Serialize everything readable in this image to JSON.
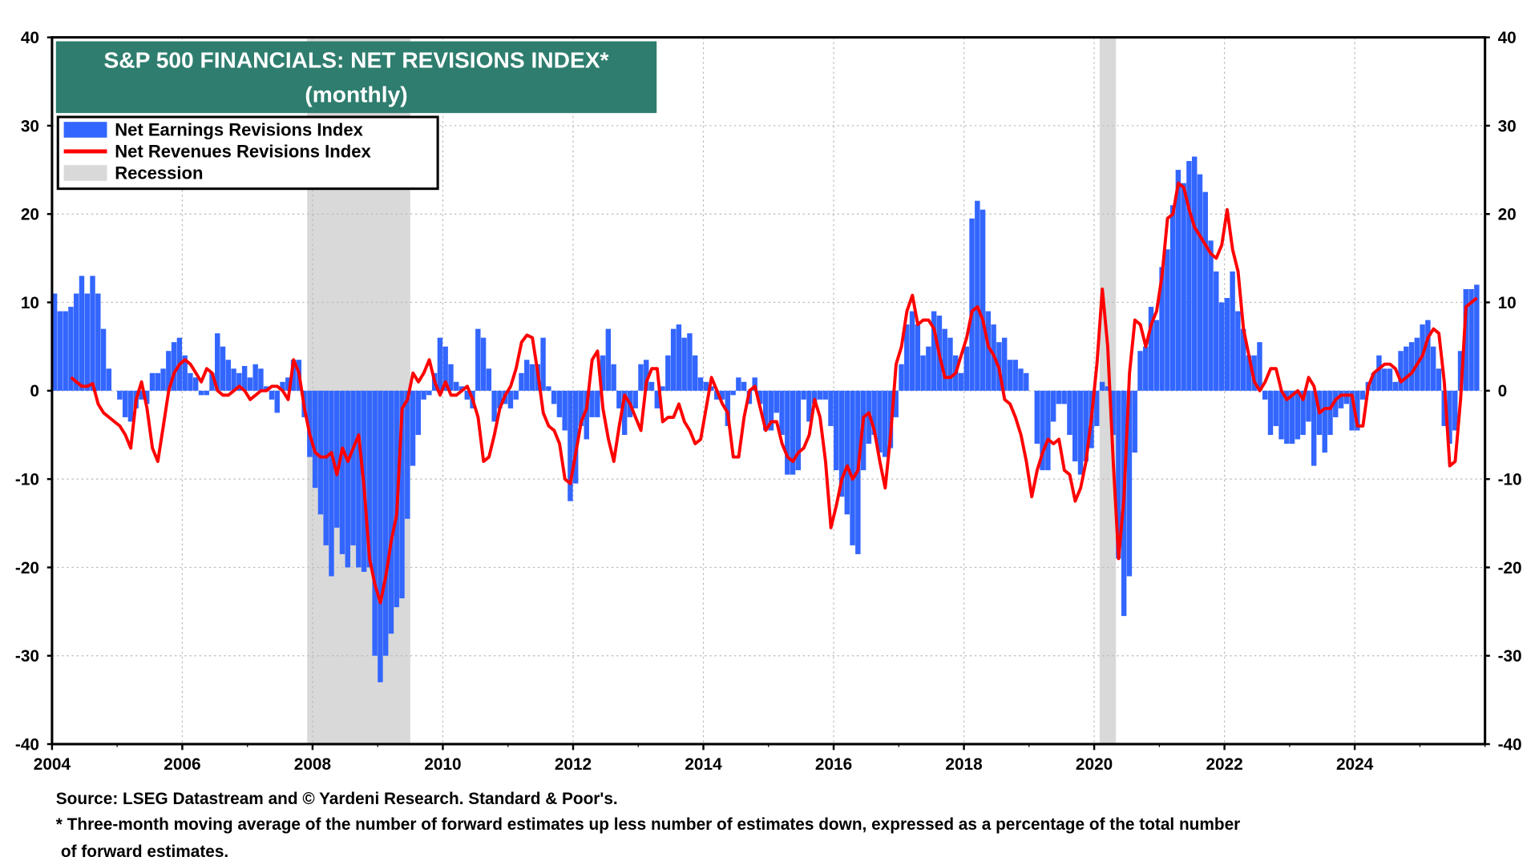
{
  "chart_data": {
    "type": "bar",
    "title": "S&P 500 FINANCIALS: NET REVISIONS INDEX*",
    "subtitle": "(monthly)",
    "xlabel": "",
    "ylabel": "",
    "ylim": [
      -40,
      40
    ],
    "xlim": [
      2004,
      2026
    ],
    "y_ticks": [
      "40",
      "30",
      "20",
      "10",
      "0",
      "-10",
      "-20",
      "-30",
      "-40"
    ],
    "x_ticks": [
      "2004",
      "2006",
      "2008",
      "2010",
      "2012",
      "2014",
      "2016",
      "2018",
      "2020",
      "2022",
      "2024"
    ],
    "grid": true,
    "legend_position": "top-left",
    "legend": [
      "Net Earnings Revisions Index",
      "Net Revenues Revisions Index",
      "Recession"
    ],
    "colors": {
      "earnings": "#3366ff",
      "revenues": "#ff0000",
      "recession": "#d9d9d9",
      "title_bg": "#2e7d6e"
    },
    "recessions": [
      {
        "start": "2007-12",
        "end": "2009-06"
      },
      {
        "start": "2020-02",
        "end": "2020-04"
      }
    ],
    "series": [
      {
        "name": "Net Earnings Revisions Index",
        "type": "bar",
        "start": "2004-01",
        "values": [
          11,
          9,
          9,
          9.5,
          11,
          13,
          11,
          13,
          11,
          7,
          2.5,
          0,
          -1,
          -3,
          -3.5,
          -2,
          -1,
          -1.5,
          2,
          2,
          2.5,
          4.5,
          5.5,
          6,
          4,
          2,
          1.5,
          -0.5,
          -0.5,
          2,
          6.5,
          5,
          3.5,
          2.5,
          2,
          2.8,
          1.5,
          3,
          2.5,
          0.5,
          -1,
          -2.5,
          1,
          1.5,
          3.5,
          3.5,
          -3,
          -7.5,
          -11,
          -14,
          -17.5,
          -21,
          -15.5,
          -18.5,
          -20,
          -17.5,
          -20,
          -20.5,
          -20,
          -30,
          -33,
          -30,
          -27.5,
          -24.5,
          -23.5,
          -14.5,
          -8.5,
          -5,
          -1,
          -0.5,
          2,
          6,
          5,
          3,
          1,
          0.5,
          -1,
          -2,
          7,
          6,
          2.5,
          -3.5,
          -2,
          -1.5,
          -2,
          -1,
          2,
          3.5,
          3,
          3,
          6,
          0.5,
          -1.5,
          -3,
          -4.5,
          -12.5,
          -10.5,
          -4,
          -5.5,
          -3,
          -3,
          4,
          7,
          3,
          -2,
          -5,
          -3,
          -2,
          3,
          3.5,
          1,
          -2,
          0.5,
          4,
          7,
          7.5,
          6,
          6.5,
          4,
          1.5,
          1,
          0.5,
          -1,
          -1,
          -4,
          -0.5,
          1.5,
          1,
          -1.5,
          1.5,
          -1.5,
          -4.5,
          -4.5,
          -2.5,
          -5,
          -9.5,
          -9.5,
          -9,
          -1,
          -3.5,
          -1.5,
          -1,
          -1,
          -4,
          -9,
          -12,
          -14,
          -17.5,
          -18.5,
          -9,
          -6,
          -5,
          -7,
          -7.5,
          -6.5,
          -3,
          3,
          7.5,
          9,
          7.5,
          4,
          5,
          9,
          8.5,
          7,
          6,
          4,
          2,
          5,
          19.5,
          21.5,
          20.5,
          9,
          7.5,
          5.5,
          6,
          3.5,
          3.5,
          2.5,
          2,
          0,
          -6,
          -9,
          -9,
          -3.5,
          -1.5,
          -1.5,
          -5,
          -8,
          -9.5,
          -8,
          -6.5,
          -4,
          1,
          0.5,
          -5,
          -19,
          -25.5,
          -21,
          -7,
          4.5,
          5,
          9.5,
          8,
          14,
          16,
          21,
          25,
          23.5,
          26,
          26.5,
          24.5,
          22.5,
          17,
          13.5,
          10,
          10.5,
          13.5,
          9,
          7,
          4,
          4,
          5.5,
          -1,
          -5,
          -4,
          -5.5,
          -6,
          -6,
          -5.5,
          -5,
          -3.5,
          -8.5,
          -5,
          -7,
          -5,
          -3,
          -2,
          -1.5,
          -4.5,
          -4.5,
          -1,
          1,
          2,
          4,
          2.5,
          2.5,
          1,
          4.5,
          5,
          5.5,
          6,
          7.5,
          8,
          5,
          2.5,
          -4,
          -6,
          -4.5,
          4.5,
          11.5,
          11.5,
          12
        ]
      },
      {
        "name": "Net Revenues Revisions Index",
        "type": "line",
        "start": "2004-04",
        "values": [
          1.5,
          1,
          0.5,
          0.5,
          0.8,
          -1.5,
          -2.5,
          -3,
          -3.5,
          -4,
          -5,
          -6.5,
          -1,
          1,
          -2,
          -6.5,
          -8,
          -4,
          0,
          2,
          3,
          3.5,
          3,
          2,
          1,
          2.5,
          2,
          0,
          -0.5,
          -0.5,
          0,
          0.5,
          0,
          -1,
          -0.5,
          0,
          0,
          0.5,
          0.5,
          0,
          -1,
          3.5,
          2,
          -2,
          -5,
          -7,
          -7.5,
          -7.5,
          -7,
          -9.5,
          -6.5,
          -8,
          -6.5,
          -5,
          -11,
          -19,
          -22,
          -24,
          -21,
          -17,
          -14,
          -2,
          -1,
          2,
          1,
          2,
          3.5,
          1,
          -0.5,
          1,
          -0.5,
          -0.5,
          0,
          0.5,
          -1,
          -3,
          -8,
          -7.5,
          -5,
          -2,
          -0.5,
          0.5,
          2.5,
          5.5,
          6.3,
          6,
          2,
          -2.5,
          -4,
          -4.5,
          -6,
          -10,
          -10.5,
          -7,
          -3.5,
          -2,
          3.5,
          4.5,
          -2,
          -5.5,
          -8,
          -4,
          -0.5,
          -1.5,
          -3,
          -4.5,
          1,
          2.5,
          2.5,
          -3.5,
          -3,
          -3,
          -1.5,
          -3.5,
          -4.5,
          -6,
          -5.5,
          -2,
          1.5,
          0,
          -1.5,
          -2.5,
          -7.5,
          -7.5,
          -3,
          0,
          0.5,
          -2,
          -4.5,
          -3.5,
          -3.5,
          -6,
          -7.5,
          -8,
          -7,
          -6.5,
          -5,
          -1,
          -3,
          -8,
          -15.5,
          -13,
          -10,
          -8.5,
          -10,
          -9,
          -3,
          -2.5,
          -4.5,
          -8,
          -11,
          -5,
          3,
          5,
          9,
          10.8,
          7.5,
          8,
          8,
          7,
          4,
          1.5,
          1.5,
          2,
          4,
          6,
          9,
          9.5,
          8,
          5,
          4,
          2.5,
          -1,
          -1.5,
          -3,
          -5,
          -8,
          -12,
          -9,
          -7,
          -5.5,
          -6,
          -5.5,
          -9,
          -9.5,
          -12.5,
          -11,
          -8,
          -3,
          3,
          11.5,
          5,
          -8,
          -19,
          -12,
          2,
          8,
          7.5,
          5,
          7.5,
          9,
          13,
          19.5,
          20,
          23.5,
          23,
          20.5,
          18.5,
          17.5,
          16.5,
          15.5,
          15,
          16.5,
          20.5,
          16,
          13.5,
          7,
          4,
          1,
          0,
          1,
          2.5,
          2.5,
          0,
          -1,
          -0.5,
          0,
          -1,
          1.5,
          0.5,
          -2.5,
          -2,
          -2,
          -1,
          -0.5,
          -0.5,
          -0.5,
          -4,
          -4,
          0.5,
          2,
          2.5,
          3,
          3,
          2.5,
          1,
          1.5,
          2,
          3,
          4,
          6,
          7,
          6.5,
          1,
          -8.5,
          -8,
          -1,
          9.5,
          10,
          10.5
        ]
      }
    ],
    "footnotes": [
      "Source: LSEG Datastream and © Yardeni Research. Standard & Poor's.",
      "* Three-month moving average of the number of forward estimates up less number of estimates down, expressed as a percentage of the total number",
      "of forward estimates."
    ]
  }
}
